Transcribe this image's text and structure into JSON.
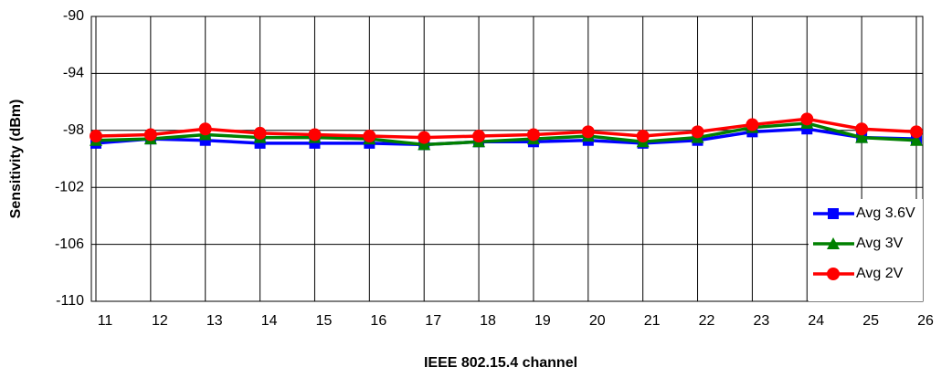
{
  "chart_data": {
    "type": "line",
    "xlabel": "IEEE 802.15.4 channel",
    "ylabel": "Sensitivity (dBm)",
    "categories": [
      "11",
      "12",
      "13",
      "14",
      "15",
      "16",
      "17",
      "18",
      "19",
      "20",
      "21",
      "22",
      "23",
      "24",
      "25",
      "26"
    ],
    "series": [
      {
        "name": "Avg 3.6V",
        "color": "#0000ff",
        "marker": "square",
        "values": [
          -98.9,
          -98.6,
          -98.7,
          -98.9,
          -98.9,
          -98.9,
          -99.0,
          -98.8,
          -98.8,
          -98.7,
          -98.9,
          -98.7,
          -98.1,
          -97.9,
          -98.5,
          -98.6
        ]
      },
      {
        "name": "Avg 3V",
        "color": "#008000",
        "marker": "triangle",
        "values": [
          -98.7,
          -98.6,
          -98.3,
          -98.5,
          -98.5,
          -98.6,
          -99.0,
          -98.8,
          -98.6,
          -98.4,
          -98.8,
          -98.5,
          -97.8,
          -97.5,
          -98.5,
          -98.7
        ]
      },
      {
        "name": "Avg 2V",
        "color": "#ff0000",
        "marker": "circle",
        "values": [
          -98.4,
          -98.3,
          -97.9,
          -98.2,
          -98.3,
          -98.4,
          -98.5,
          -98.4,
          -98.3,
          -98.1,
          -98.4,
          -98.1,
          -97.6,
          -97.2,
          -97.9,
          -98.1
        ]
      }
    ],
    "ylim": [
      -110,
      -90
    ],
    "yticks": [
      -110,
      -106,
      -102,
      -98,
      -94,
      -90
    ],
    "grid": true,
    "legend": "lower right"
  }
}
